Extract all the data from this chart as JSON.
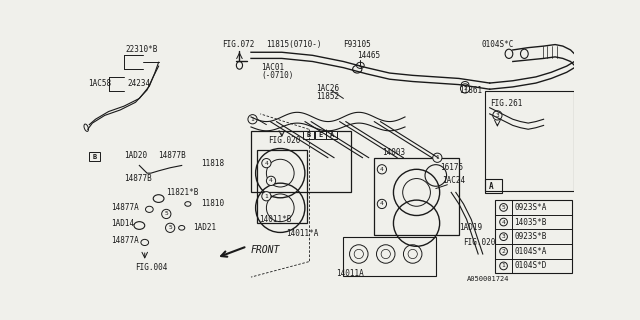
{
  "bg_color": "#f0f0eb",
  "line_color": "#1a1a1a",
  "fig_width": 6.4,
  "fig_height": 3.2,
  "dpi": 100,
  "legend_items": [
    {
      "num": "1",
      "code": "0104S*D"
    },
    {
      "num": "2",
      "code": "0104S*A"
    },
    {
      "num": "3",
      "code": "0923S*B"
    },
    {
      "num": "4",
      "code": "14035*B"
    },
    {
      "num": "5",
      "code": "0923S*A"
    }
  ]
}
